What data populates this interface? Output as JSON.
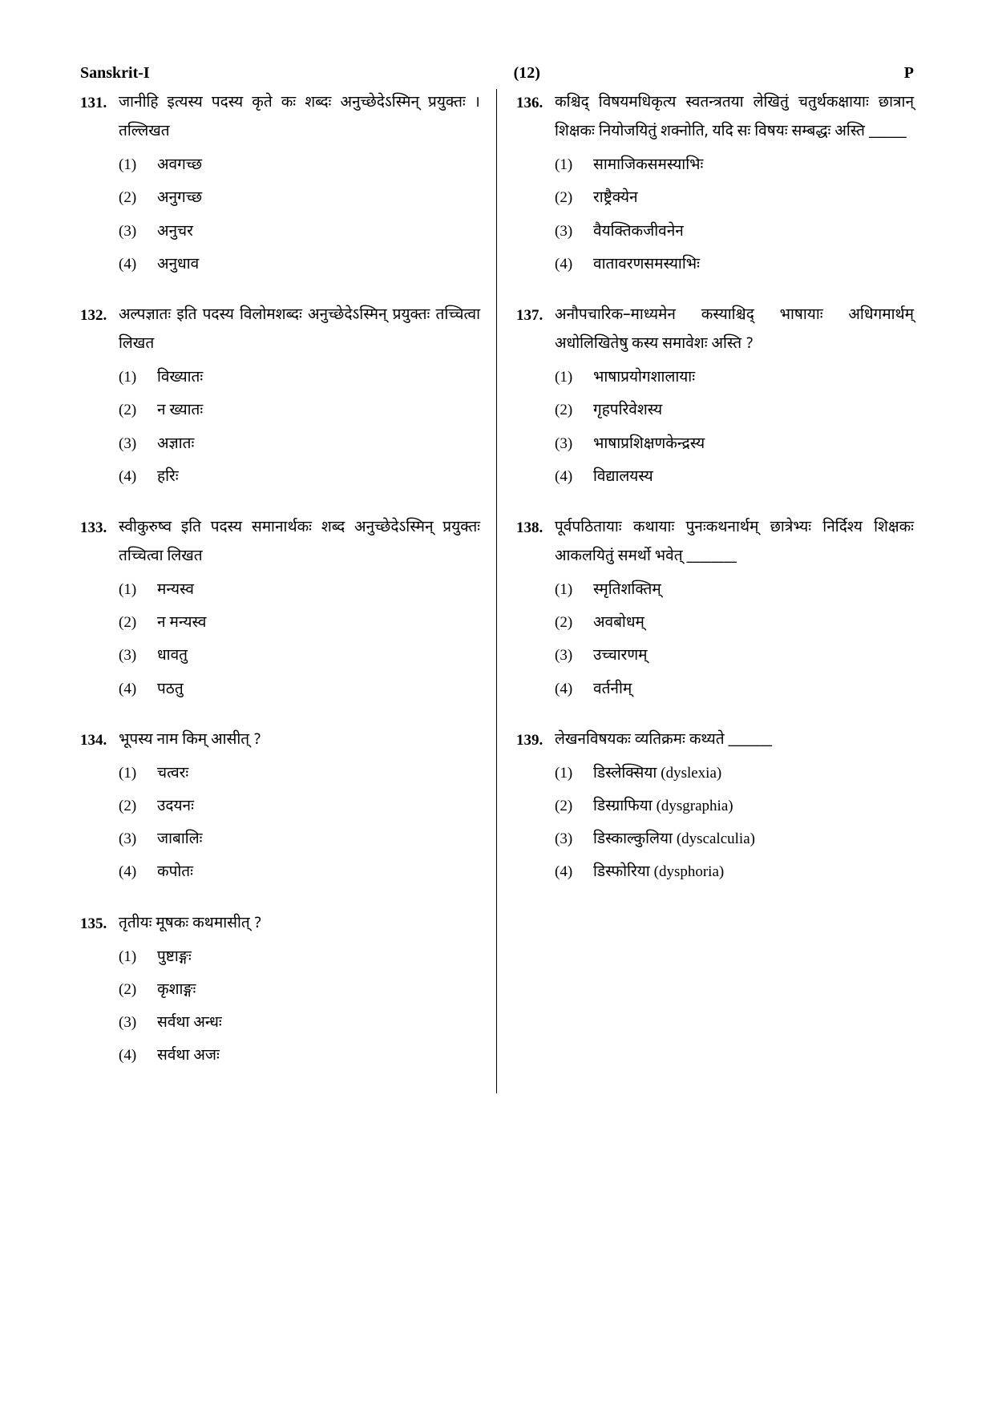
{
  "header": {
    "left": "Sanskrit-I",
    "center": "(12)",
    "right": "P"
  },
  "left_column": [
    {
      "num": "131.",
      "text": "जानीहि इत्यस्य पदस्य कृते कः शब्दः अनुच्छेदेऽस्मिन् प्रयुक्तः । तल्लिखत",
      "options": [
        {
          "num": "(1)",
          "text": "अवगच्छ"
        },
        {
          "num": "(2)",
          "text": "अनुगच्छ"
        },
        {
          "num": "(3)",
          "text": "अनुचर"
        },
        {
          "num": "(4)",
          "text": "अनुधाव"
        }
      ]
    },
    {
      "num": "132.",
      "text": "अल्पज्ञातः इति पदस्य विलोमशब्दः अनुच्छेदेऽस्मिन् प्रयुक्तः तच्चित्वा लिखत",
      "options": [
        {
          "num": "(1)",
          "text": "विख्यातः"
        },
        {
          "num": "(2)",
          "text": "न ख्यातः"
        },
        {
          "num": "(3)",
          "text": "अज्ञातः"
        },
        {
          "num": "(4)",
          "text": "हरिः"
        }
      ]
    },
    {
      "num": "133.",
      "text": "स्वीकुरुष्व इति पदस्य समानार्थकः शब्द अनुच्छेदेऽस्मिन् प्रयुक्तः तच्चित्वा लिखत",
      "options": [
        {
          "num": "(1)",
          "text": "मन्यस्व"
        },
        {
          "num": "(2)",
          "text": "न मन्यस्व"
        },
        {
          "num": "(3)",
          "text": "धावतु"
        },
        {
          "num": "(4)",
          "text": "पठतु"
        }
      ]
    },
    {
      "num": "134.",
      "text": "भूपस्य नाम किम् आसीत् ?",
      "options": [
        {
          "num": "(1)",
          "text": "चत्वरः"
        },
        {
          "num": "(2)",
          "text": "उदयनः"
        },
        {
          "num": "(3)",
          "text": "जाबालिः"
        },
        {
          "num": "(4)",
          "text": "कपोतः"
        }
      ]
    },
    {
      "num": "135.",
      "text": "तृतीयः मूषकः कथमासीत् ?",
      "options": [
        {
          "num": "(1)",
          "text": "पुष्टाङ्गः"
        },
        {
          "num": "(2)",
          "text": "कृशाङ्गः"
        },
        {
          "num": "(3)",
          "text": "सर्वथा अन्धः"
        },
        {
          "num": "(4)",
          "text": "सर्वथा अजः"
        }
      ]
    }
  ],
  "right_column": [
    {
      "num": "136.",
      "text": "कश्चिद् विषयमधिकृत्य स्वतन्त्रतया लेखितुं चतुर्थकक्षायाः छात्रान् शिक्षकः नियोजयितुं शक्नोति, यदि सः विषयः सम्बद्धः अस्ति ______",
      "options": [
        {
          "num": "(1)",
          "text": "सामाजिकसमस्याभिः"
        },
        {
          "num": "(2)",
          "text": "राष्ट्रैक्येन"
        },
        {
          "num": "(3)",
          "text": "वैयक्तिकजीवनेन"
        },
        {
          "num": "(4)",
          "text": "वातावरणसमस्याभिः"
        }
      ]
    },
    {
      "num": "137.",
      "text": "अनौपचारिक–माध्यमेन कस्याश्चिद् भाषायाः अधिगमार्थम् अधोलिखितेषु कस्य समावेशः अस्ति ?",
      "options": [
        {
          "num": "(1)",
          "text": "भाषाप्रयोगशालायाः"
        },
        {
          "num": "(2)",
          "text": "गृहपरिवेशस्य"
        },
        {
          "num": "(3)",
          "text": "भाषाप्रशिक्षणकेन्द्रस्य"
        },
        {
          "num": "(4)",
          "text": "विद्यालयस्य"
        }
      ]
    },
    {
      "num": "138.",
      "text": "पूर्वपठितायाः कथायाः पुनःकथनार्थम् छात्रेभ्यः निर्दिश्य शिक्षकः आकलयितुं समर्थो भवेत् ________",
      "options": [
        {
          "num": "(1)",
          "text": "स्मृतिशक्तिम्"
        },
        {
          "num": "(2)",
          "text": "अवबोधम्"
        },
        {
          "num": "(3)",
          "text": "उच्चारणम्"
        },
        {
          "num": "(4)",
          "text": "वर्तनीम्"
        }
      ]
    },
    {
      "num": "139.",
      "text": "लेखनविषयकः व्यतिक्रमः कथ्यते _______",
      "options": [
        {
          "num": "(1)",
          "text": "डिस्लेक्सिया (dyslexia)"
        },
        {
          "num": "(2)",
          "text": "डिस्ग्राफिया (dysgraphia)"
        },
        {
          "num": "(3)",
          "text": "डिस्काल्कुलिया (dyscalculia)"
        },
        {
          "num": "(4)",
          "text": "डिस्फोरिया (dysphoria)"
        }
      ]
    }
  ]
}
